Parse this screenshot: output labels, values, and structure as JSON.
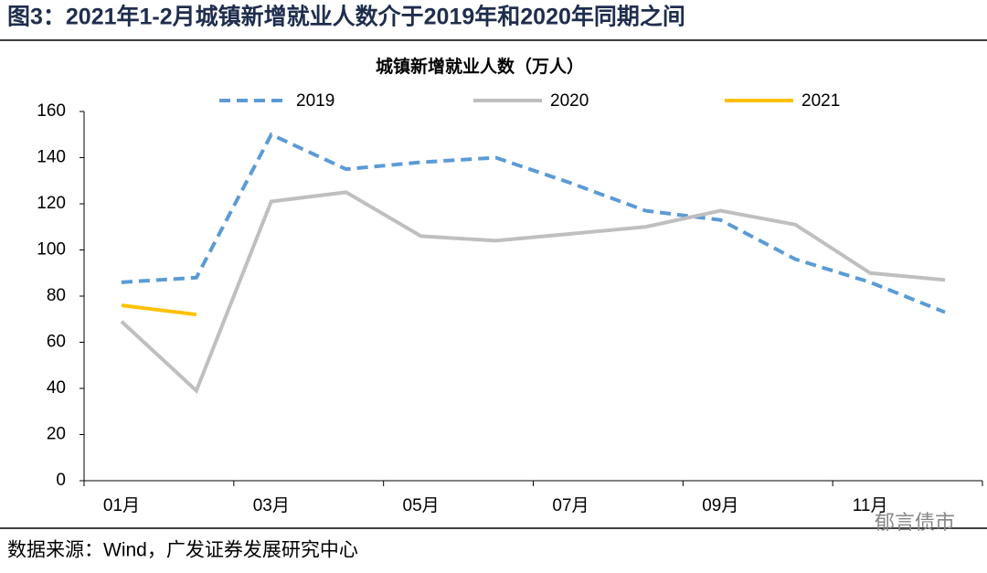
{
  "chart_data": {
    "type": "line",
    "figure_title": "图3：2021年1-2月城镇新增就业人数介于2019年和2020年同期之间",
    "title": "城镇新增就业人数（万人）",
    "categories": [
      "01月",
      null,
      "03月",
      null,
      "05月",
      null,
      "07月",
      null,
      "09月",
      null,
      "11月",
      null
    ],
    "series": [
      {
        "name": "2019",
        "color": "#5b9bd5",
        "dashed": true,
        "values": [
          86,
          88,
          150,
          135,
          138,
          140,
          129,
          117,
          113,
          96,
          86,
          73
        ]
      },
      {
        "name": "2020",
        "color": "#bfbfbf",
        "dashed": false,
        "values": [
          69,
          39,
          121,
          125,
          106,
          104,
          107,
          110,
          117,
          111,
          90,
          87
        ]
      },
      {
        "name": "2021",
        "color": "#ffc000",
        "dashed": false,
        "values": [
          76,
          72,
          null,
          null,
          null,
          null,
          null,
          null,
          null,
          null,
          null,
          null
        ]
      }
    ],
    "ylim": [
      0,
      160
    ],
    "yticks": [
      0,
      20,
      40,
      60,
      80,
      100,
      120,
      140,
      160
    ],
    "source": "数据来源：Wind，广发证券发展研究中心",
    "watermark": "郁言债市"
  }
}
